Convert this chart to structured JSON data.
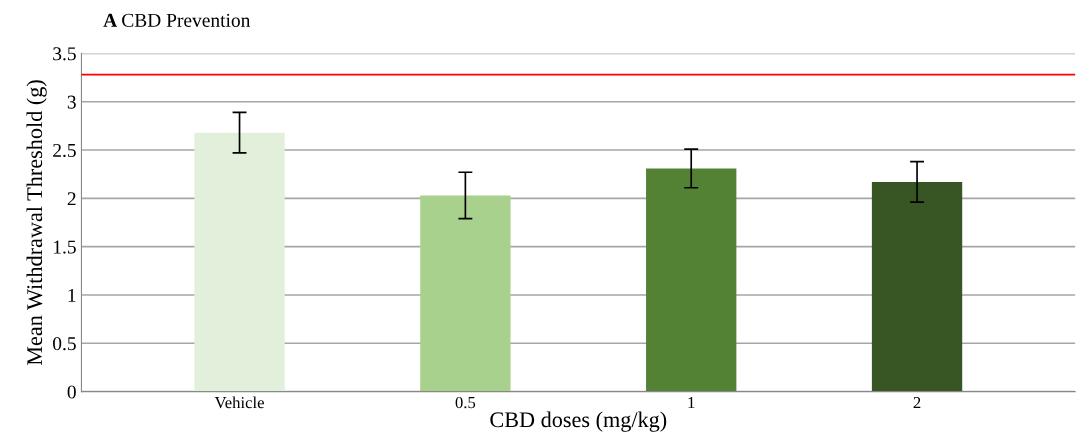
{
  "chart_data": {
    "type": "bar",
    "title": "A CBD Prevention",
    "xlabel": "CBD doses (mg/kg)",
    "ylabel": "Mean Withdrawal Threshold (g)",
    "categories": [
      "Vehicle",
      "0.5",
      "1",
      "2"
    ],
    "values": [
      2.68,
      2.03,
      2.31,
      2.17
    ],
    "errors": [
      0.21,
      0.24,
      0.2,
      0.21
    ],
    "colors": [
      "#e2efda",
      "#a9d18e",
      "#548235",
      "#375623"
    ],
    "ylim": [
      0,
      3.5
    ],
    "yticks": [
      0,
      0.5,
      1,
      1.5,
      2,
      2.5,
      3,
      3.5
    ],
    "grid": "y",
    "ref_lines": [
      {
        "axis": "y",
        "value": 3.28,
        "color": "#ff0000"
      }
    ]
  }
}
